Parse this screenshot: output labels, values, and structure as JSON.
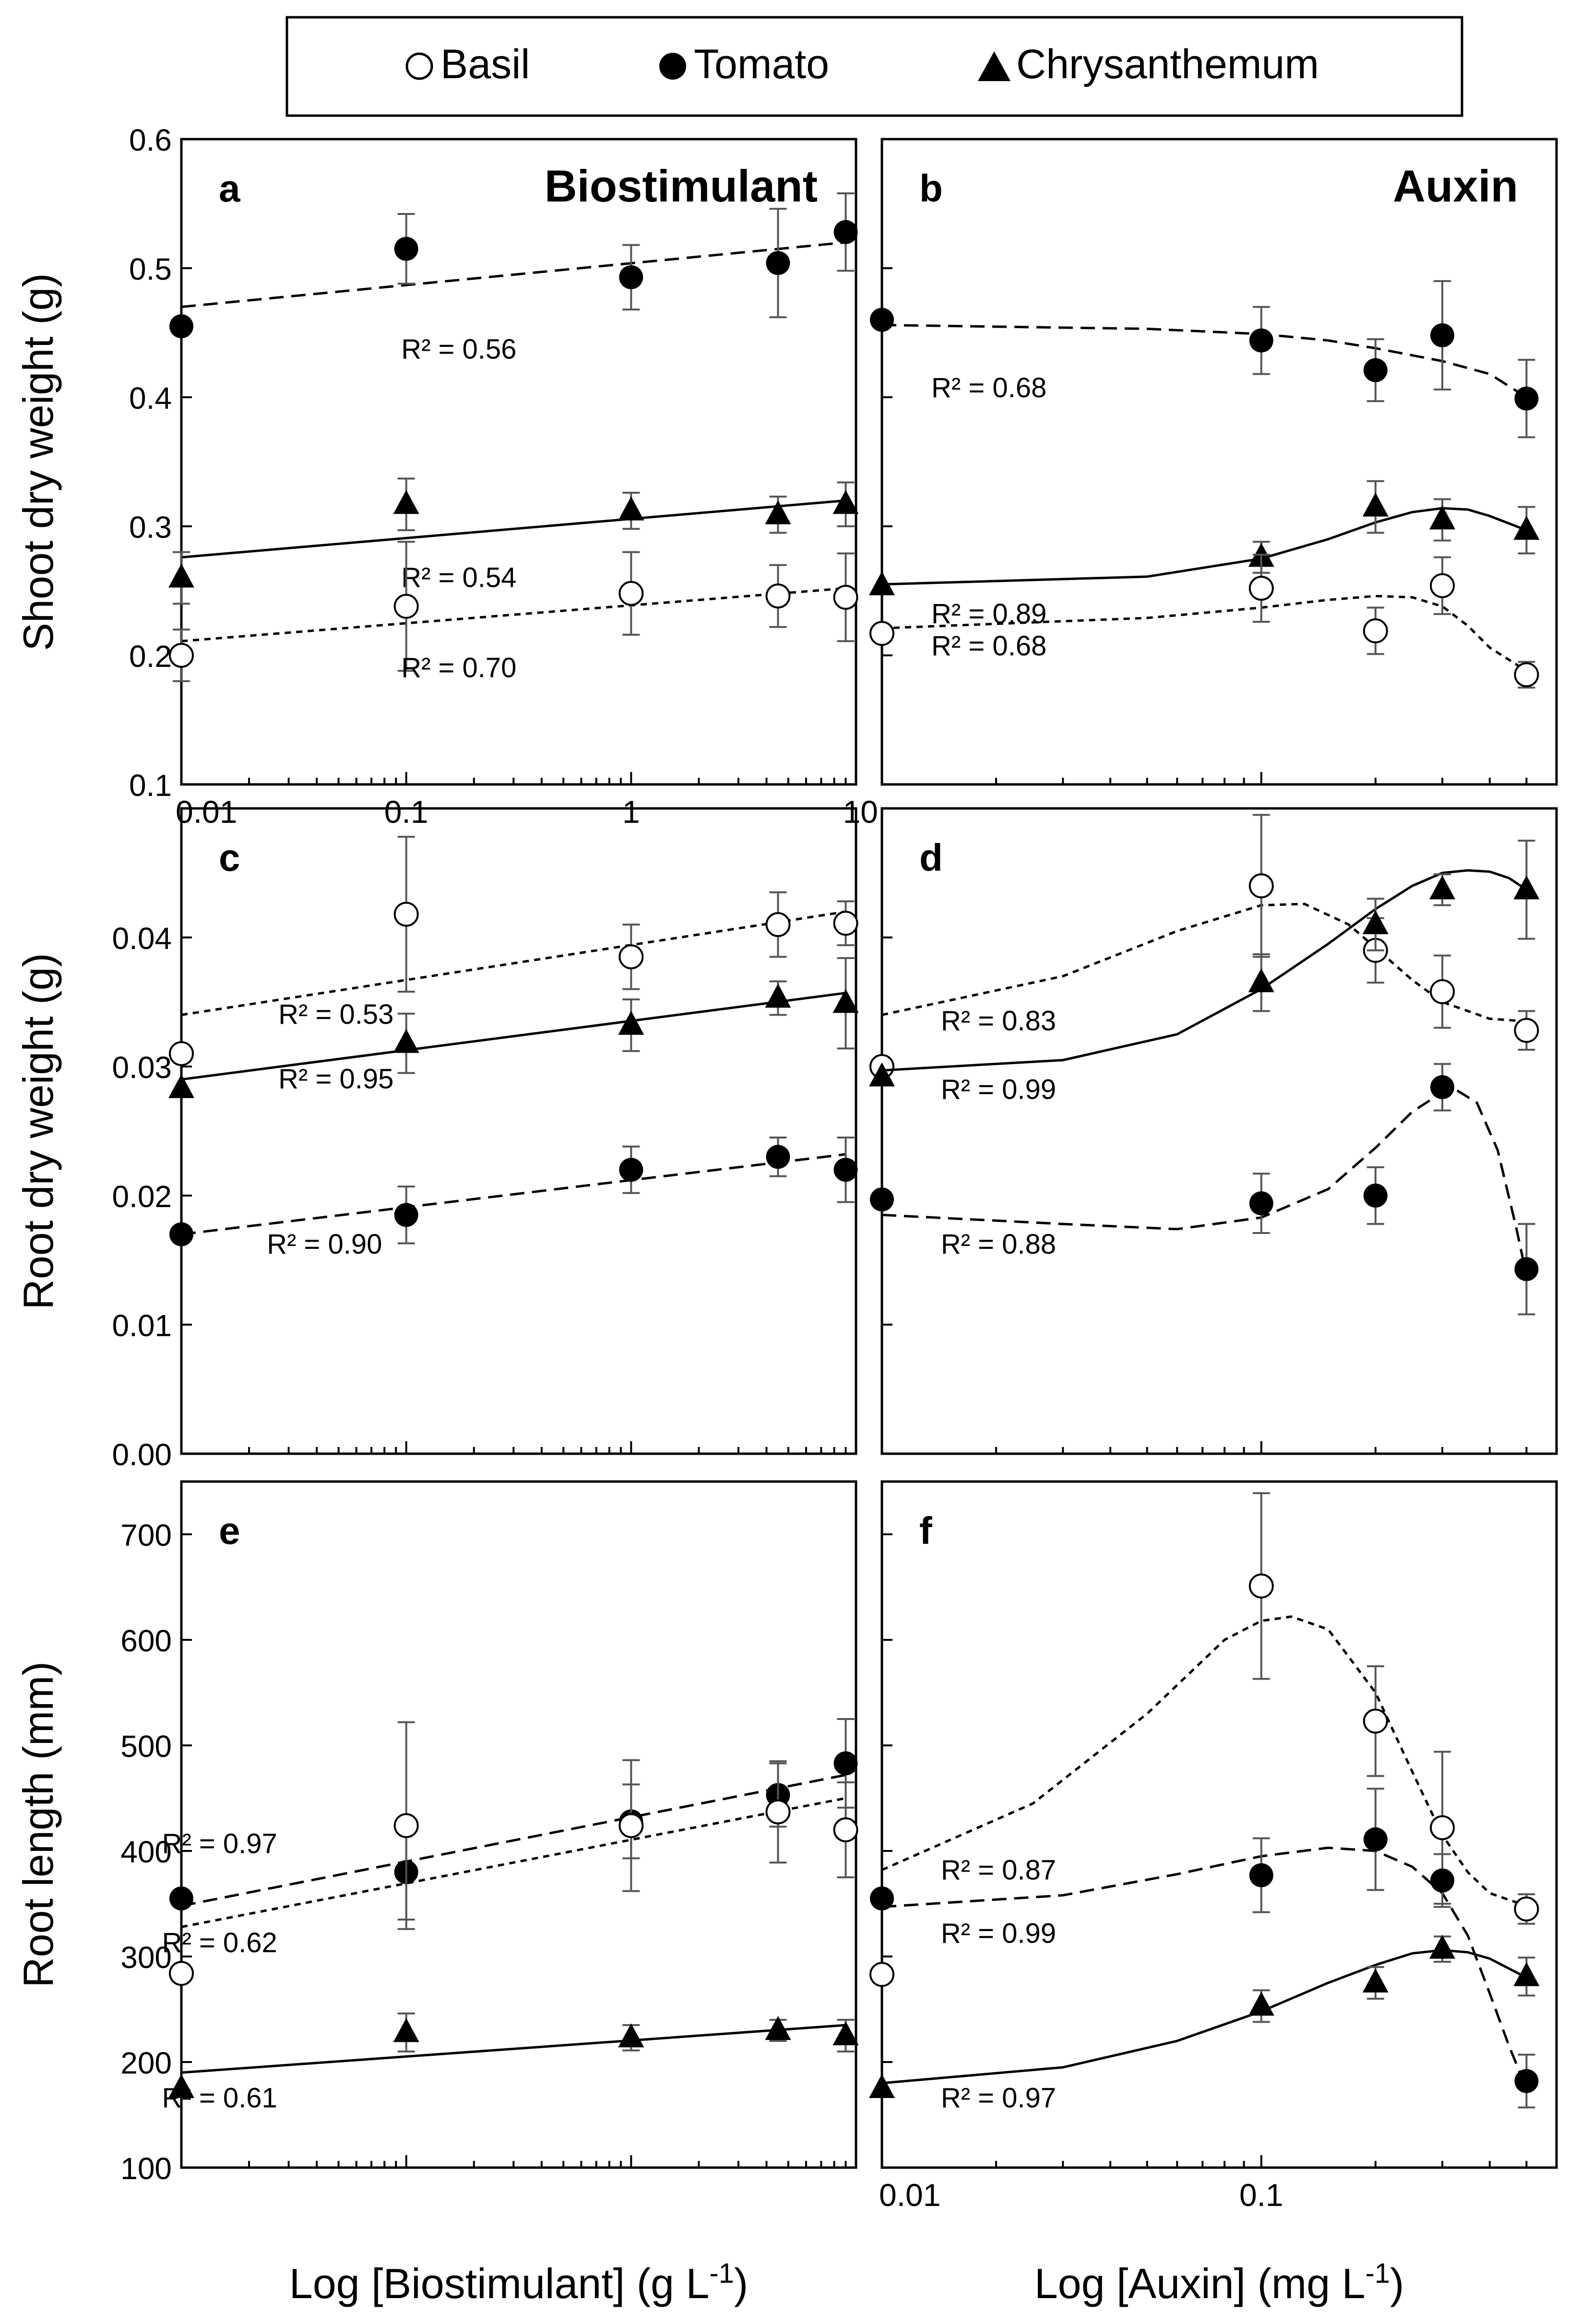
{
  "legend": {
    "entries": [
      {
        "name": "Basil",
        "marker": "open-circle"
      },
      {
        "name": "Tomato",
        "marker": "filled-circle"
      },
      {
        "name": "Chrysanthemum",
        "marker": "filled-triangle"
      }
    ]
  },
  "axis_titles": {
    "shoot_y": "Shoot dry weight (g)",
    "root_dw_y": "Root dry weight (g)",
    "root_len_y": "Root length (mm)",
    "x_left": "Log [Biostimulant] (g L",
    "x_right": "Log [Auxin] (mg L",
    "x_unit_exp": "-1",
    "x_close": ")"
  },
  "chart_data": [
    {
      "id": "a",
      "type": "scatter",
      "panel_label": "a",
      "title": "Biostimulant",
      "xscale": "log",
      "xlim": [
        0.01,
        10
      ],
      "xticks": [
        0.01,
        0.1,
        1,
        10
      ],
      "xticklabels": [
        "0.01",
        "0.1",
        "1",
        "10"
      ],
      "ylim": [
        0.1,
        0.6
      ],
      "yticks": [
        0.1,
        0.2,
        0.3,
        0.4,
        0.5,
        0.6
      ],
      "yticklabels": [
        "0.1",
        "0.2",
        "0.3",
        "0.4",
        "0.5",
        "0.6"
      ],
      "series": [
        {
          "name": "Tomato",
          "marker": "filled-circle",
          "line": "long-dash",
          "x": [
            0.01,
            0.1,
            1,
            4.5,
            9
          ],
          "y": [
            0.455,
            0.515,
            0.493,
            0.504,
            0.528
          ],
          "err": [
            0.0,
            0.027,
            0.025,
            0.042,
            0.03
          ],
          "fit_x": [
            0.01,
            9
          ],
          "fit_y": [
            0.47,
            0.52
          ],
          "r2": "R² = 0.56",
          "r2_at": [
            0.095,
            0.43
          ]
        },
        {
          "name": "Chrysanthemum",
          "marker": "filled-triangle",
          "line": "solid",
          "x": [
            0.01,
            0.1,
            1,
            4.5,
            9
          ],
          "y": [
            0.26,
            0.317,
            0.312,
            0.309,
            0.317
          ],
          "err": [
            0.02,
            0.02,
            0.014,
            0.014,
            0.017
          ],
          "fit_x": [
            0.01,
            9
          ],
          "fit_y": [
            0.276,
            0.32
          ],
          "r2": "R² = 0.54",
          "r2_at": [
            0.095,
            0.253
          ]
        },
        {
          "name": "Basil",
          "marker": "open-circle",
          "line": "short-dash",
          "x": [
            0.01,
            0.1,
            1,
            4.5,
            9
          ],
          "y": [
            0.2,
            0.238,
            0.248,
            0.246,
            0.245
          ],
          "err": [
            0.02,
            0.05,
            0.032,
            0.024,
            0.034
          ],
          "fit_x": [
            0.01,
            9
          ],
          "fit_y": [
            0.211,
            0.252
          ],
          "r2": "R² = 0.70",
          "r2_at": [
            0.095,
            0.183
          ]
        }
      ]
    },
    {
      "id": "b",
      "type": "scatter",
      "panel_label": "b",
      "title": "Auxin",
      "xscale": "log",
      "xlim": [
        0.01,
        0.6
      ],
      "xticks": [
        0.01,
        0.1
      ],
      "xticklabels": [],
      "ylim": [
        0.1,
        0.6
      ],
      "yticks": [
        0.1,
        0.2,
        0.3,
        0.4,
        0.5,
        0.6
      ],
      "yticklabels": [],
      "series": [
        {
          "name": "Tomato",
          "marker": "filled-circle",
          "line": "long-dash",
          "x": [
            0.01,
            0.1,
            0.2,
            0.3,
            0.5
          ],
          "y": [
            0.46,
            0.444,
            0.421,
            0.448,
            0.399
          ],
          "err": [
            0.0,
            0.026,
            0.024,
            0.042,
            0.03
          ],
          "fit_x": [
            0.01,
            0.05,
            0.1,
            0.15,
            0.2,
            0.3,
            0.4,
            0.5
          ],
          "fit_y": [
            0.456,
            0.453,
            0.449,
            0.444,
            0.438,
            0.428,
            0.418,
            0.4
          ],
          "r2": "R² = 0.68",
          "r2_at": [
            0.0135,
            0.4
          ]
        },
        {
          "name": "Chrysanthemum",
          "marker": "filled-triangle",
          "line": "solid",
          "x": [
            0.01,
            0.1,
            0.2,
            0.3,
            0.5
          ],
          "y": [
            0.254,
            0.276,
            0.315,
            0.305,
            0.297
          ],
          "err": [
            0.0,
            0.012,
            0.02,
            0.016,
            0.018
          ],
          "fit_x": [
            0.01,
            0.05,
            0.1,
            0.15,
            0.2,
            0.25,
            0.3,
            0.35,
            0.4,
            0.5
          ],
          "fit_y": [
            0.255,
            0.261,
            0.275,
            0.29,
            0.303,
            0.311,
            0.314,
            0.313,
            0.308,
            0.297
          ],
          "r2": "R² = 0.89",
          "r2_at": [
            0.0135,
            0.225
          ]
        },
        {
          "name": "Basil",
          "marker": "open-circle",
          "line": "short-dash",
          "x": [
            0.01,
            0.1,
            0.2,
            0.3,
            0.5
          ],
          "y": [
            0.217,
            0.252,
            0.219,
            0.254,
            0.185
          ],
          "err": [
            0.0,
            0.026,
            0.018,
            0.022,
            0.01
          ],
          "fit_x": [
            0.01,
            0.05,
            0.1,
            0.15,
            0.2,
            0.25,
            0.3,
            0.35,
            0.4,
            0.5
          ],
          "fit_y": [
            0.221,
            0.229,
            0.237,
            0.243,
            0.246,
            0.245,
            0.238,
            0.223,
            0.206,
            0.188
          ],
          "r2": "R² = 0.68",
          "r2_at": [
            0.0135,
            0.2
          ]
        }
      ]
    },
    {
      "id": "c",
      "type": "scatter",
      "panel_label": "c",
      "title": "",
      "xscale": "log",
      "xlim": [
        0.01,
        10
      ],
      "xticks": [
        0.01,
        0.1,
        1,
        10
      ],
      "xticklabels": [],
      "ylim": [
        0.0,
        0.05
      ],
      "yticks": [
        0.0,
        0.01,
        0.02,
        0.03,
        0.04
      ],
      "yticklabels": [
        "0.00",
        "0.01",
        "0.02",
        "0.03",
        "0.04"
      ],
      "series": [
        {
          "name": "Basil",
          "marker": "open-circle",
          "line": "short-dash",
          "x": [
            0.01,
            0.1,
            1,
            4.5,
            9
          ],
          "y": [
            0.031,
            0.0418,
            0.0385,
            0.041,
            0.0411
          ],
          "err": [
            0.0,
            0.006,
            0.0025,
            0.0025,
            0.0017
          ],
          "fit_x": [
            0.01,
            9
          ],
          "fit_y": [
            0.034,
            0.042
          ],
          "r2": "R² = 0.53",
          "r2_at": [
            0.027,
            0.0333
          ]
        },
        {
          "name": "Chrysanthemum",
          "marker": "filled-triangle",
          "line": "solid",
          "x": [
            0.01,
            0.1,
            1,
            4.5,
            9
          ],
          "y": [
            0.0283,
            0.0318,
            0.0332,
            0.0353,
            0.0349
          ],
          "err": [
            0.0,
            0.0023,
            0.002,
            0.0013,
            0.0035
          ],
          "fit_x": [
            0.01,
            9
          ],
          "fit_y": [
            0.029,
            0.0357
          ],
          "r2": "R² = 0.95",
          "r2_at": [
            0.027,
            0.0283
          ]
        },
        {
          "name": "Tomato",
          "marker": "filled-circle",
          "line": "long-dash",
          "x": [
            0.01,
            0.1,
            1,
            4.5,
            9
          ],
          "y": [
            0.017,
            0.0185,
            0.022,
            0.023,
            0.022
          ],
          "err": [
            0.0,
            0.0022,
            0.0018,
            0.0015,
            0.0025
          ],
          "fit_x": [
            0.01,
            9
          ],
          "fit_y": [
            0.017,
            0.0232
          ],
          "r2": "R² = 0.90",
          "r2_at": [
            0.024,
            0.0155
          ]
        }
      ]
    },
    {
      "id": "d",
      "type": "scatter",
      "panel_label": "d",
      "title": "",
      "xscale": "log",
      "xlim": [
        0.01,
        0.6
      ],
      "xticks": [
        0.01,
        0.1
      ],
      "xticklabels": [],
      "ylim": [
        0.0,
        0.05
      ],
      "yticks": [
        0.0,
        0.01,
        0.02,
        0.03,
        0.04
      ],
      "yticklabels": [],
      "series": [
        {
          "name": "Basil",
          "marker": "open-circle",
          "line": "short-dash",
          "x": [
            0.01,
            0.1,
            0.2,
            0.3,
            0.5
          ],
          "y": [
            0.03,
            0.044,
            0.039,
            0.0358,
            0.0328
          ],
          "err": [
            0.0,
            0.0055,
            0.0025,
            0.0028,
            0.0015
          ],
          "fit_x": [
            0.01,
            0.03,
            0.06,
            0.1,
            0.13,
            0.17,
            0.2,
            0.25,
            0.3,
            0.4,
            0.5
          ],
          "fit_y": [
            0.034,
            0.037,
            0.0405,
            0.0425,
            0.0426,
            0.041,
            0.0392,
            0.0367,
            0.035,
            0.0337,
            0.0335
          ],
          "r2": "R² = 0.83",
          "r2_at": [
            0.0143,
            0.0328
          ]
        },
        {
          "name": "Chrysanthemum",
          "marker": "filled-triangle",
          "line": "solid",
          "x": [
            0.01,
            0.1,
            0.2,
            0.3,
            0.5
          ],
          "y": [
            0.0292,
            0.0365,
            0.041,
            0.0437,
            0.0437
          ],
          "err": [
            0.0,
            0.0022,
            0.002,
            0.0012,
            0.0038
          ],
          "fit_x": [
            0.01,
            0.03,
            0.06,
            0.1,
            0.15,
            0.2,
            0.25,
            0.3,
            0.35,
            0.4,
            0.45,
            0.5
          ],
          "fit_y": [
            0.0297,
            0.0305,
            0.0325,
            0.036,
            0.0395,
            0.0422,
            0.044,
            0.045,
            0.0452,
            0.0451,
            0.0446,
            0.0437
          ],
          "r2": "R² = 0.99",
          "r2_at": [
            0.0143,
            0.0275
          ]
        },
        {
          "name": "Tomato",
          "marker": "filled-circle",
          "line": "long-dash",
          "x": [
            0.01,
            0.1,
            0.2,
            0.3,
            0.5
          ],
          "y": [
            0.0197,
            0.0194,
            0.02,
            0.0284,
            0.0143
          ],
          "err": [
            0.0,
            0.0023,
            0.0022,
            0.0018,
            0.0035
          ],
          "fit_x": [
            0.01,
            0.03,
            0.06,
            0.1,
            0.15,
            0.2,
            0.25,
            0.3,
            0.33,
            0.37,
            0.42,
            0.47,
            0.5
          ],
          "fit_y": [
            0.0185,
            0.0178,
            0.0174,
            0.0183,
            0.0205,
            0.0237,
            0.0265,
            0.028,
            0.0281,
            0.0272,
            0.0235,
            0.0175,
            0.0138
          ],
          "r2": "R² = 0.88",
          "r2_at": [
            0.0143,
            0.0155
          ]
        }
      ]
    },
    {
      "id": "e",
      "type": "scatter",
      "panel_label": "e",
      "title": "",
      "xscale": "log",
      "xlim": [
        0.01,
        10
      ],
      "xticks": [
        0.01,
        0.1,
        1,
        10
      ],
      "xticklabels": [],
      "ylim": [
        100,
        750
      ],
      "yticks": [
        100,
        200,
        300,
        400,
        500,
        600,
        700
      ],
      "yticklabels": [
        "100",
        "200",
        "300",
        "400",
        "500",
        "600",
        "700"
      ],
      "series": [
        {
          "name": "Tomato",
          "marker": "filled-circle",
          "line": "long-dash",
          "x": [
            0.01,
            0.1,
            1,
            4.5,
            9
          ],
          "y": [
            355,
            380,
            428,
            453,
            483
          ],
          "err": [
            0,
            45,
            35,
            30,
            42
          ],
          "fit_x": [
            0.01,
            9
          ],
          "fit_y": [
            348,
            472
          ],
          "r2": "R² = 0.97",
          "r2_at": [
            0.0082,
            398
          ]
        },
        {
          "name": "Basil",
          "marker": "open-circle",
          "line": "short-dash",
          "x": [
            0.01,
            0.1,
            1,
            4.5,
            9
          ],
          "y": [
            284,
            424,
            424,
            437,
            420
          ],
          "err": [
            0,
            98,
            62,
            48,
            45
          ],
          "fit_x": [
            0.01,
            9
          ],
          "fit_y": [
            328,
            450
          ],
          "r2": "R² = 0.62",
          "r2_at": [
            0.0082,
            304
          ]
        },
        {
          "name": "Chrysanthemum",
          "marker": "filled-triangle",
          "line": "solid",
          "x": [
            0.01,
            0.1,
            1,
            4.5,
            9
          ],
          "y": [
            175,
            228,
            223,
            230,
            225
          ],
          "err": [
            0,
            18,
            12,
            10,
            15
          ],
          "fit_x": [
            0.01,
            9
          ],
          "fit_y": [
            190,
            235
          ],
          "r2": "R² = 0.61",
          "r2_at": [
            0.0082,
            157
          ]
        }
      ]
    },
    {
      "id": "f",
      "type": "scatter",
      "panel_label": "f",
      "title": "",
      "xscale": "log",
      "xlim": [
        0.01,
        0.6
      ],
      "xticks": [
        0.01,
        0.1
      ],
      "xticklabels": [],
      "ylim": [
        100,
        750
      ],
      "yticks": [
        100,
        200,
        300,
        400,
        500,
        600,
        700
      ],
      "yticklabels": [],
      "series": [
        {
          "name": "Basil",
          "marker": "open-circle",
          "line": "short-dash",
          "x": [
            0.01,
            0.1,
            0.2,
            0.3,
            0.5
          ],
          "y": [
            283,
            651,
            523,
            422,
            345
          ],
          "err": [
            0,
            88,
            52,
            72,
            14
          ],
          "fit_x": [
            0.01,
            0.025,
            0.05,
            0.08,
            0.1,
            0.12,
            0.15,
            0.2,
            0.25,
            0.3,
            0.35,
            0.4,
            0.5
          ],
          "fit_y": [
            382,
            445,
            530,
            600,
            618,
            622,
            610,
            550,
            475,
            415,
            380,
            360,
            348
          ],
          "r2": "R² = 0.87",
          "r2_at": [
            0.0143,
            373
          ]
        },
        {
          "name": "Tomato",
          "marker": "filled-circle",
          "line": "long-dash",
          "x": [
            0.01,
            0.1,
            0.2,
            0.3,
            0.5
          ],
          "y": [
            355,
            377,
            411,
            372,
            182
          ],
          "err": [
            0,
            35,
            48,
            25,
            25
          ],
          "fit_x": [
            0.01,
            0.03,
            0.06,
            0.1,
            0.15,
            0.2,
            0.25,
            0.3,
            0.35,
            0.4,
            0.45,
            0.5
          ],
          "fit_y": [
            347,
            358,
            378,
            395,
            403,
            400,
            385,
            360,
            320,
            265,
            215,
            175
          ],
          "r2": "R² = 0.99",
          "r2_at": [
            0.0143,
            313
          ]
        },
        {
          "name": "Chrysanthemum",
          "marker": "filled-triangle",
          "line": "solid",
          "x": [
            0.01,
            0.1,
            0.2,
            0.3,
            0.5
          ],
          "y": [
            175,
            253,
            275,
            307,
            281
          ],
          "err": [
            0,
            15,
            15,
            12,
            18
          ],
          "fit_x": [
            0.01,
            0.03,
            0.06,
            0.1,
            0.15,
            0.2,
            0.25,
            0.3,
            0.35,
            0.4,
            0.5
          ],
          "fit_y": [
            180,
            195,
            220,
            248,
            275,
            292,
            303,
            306,
            304,
            298,
            280
          ],
          "r2": "R² = 0.97",
          "r2_at": [
            0.0143,
            157
          ]
        }
      ]
    }
  ]
}
